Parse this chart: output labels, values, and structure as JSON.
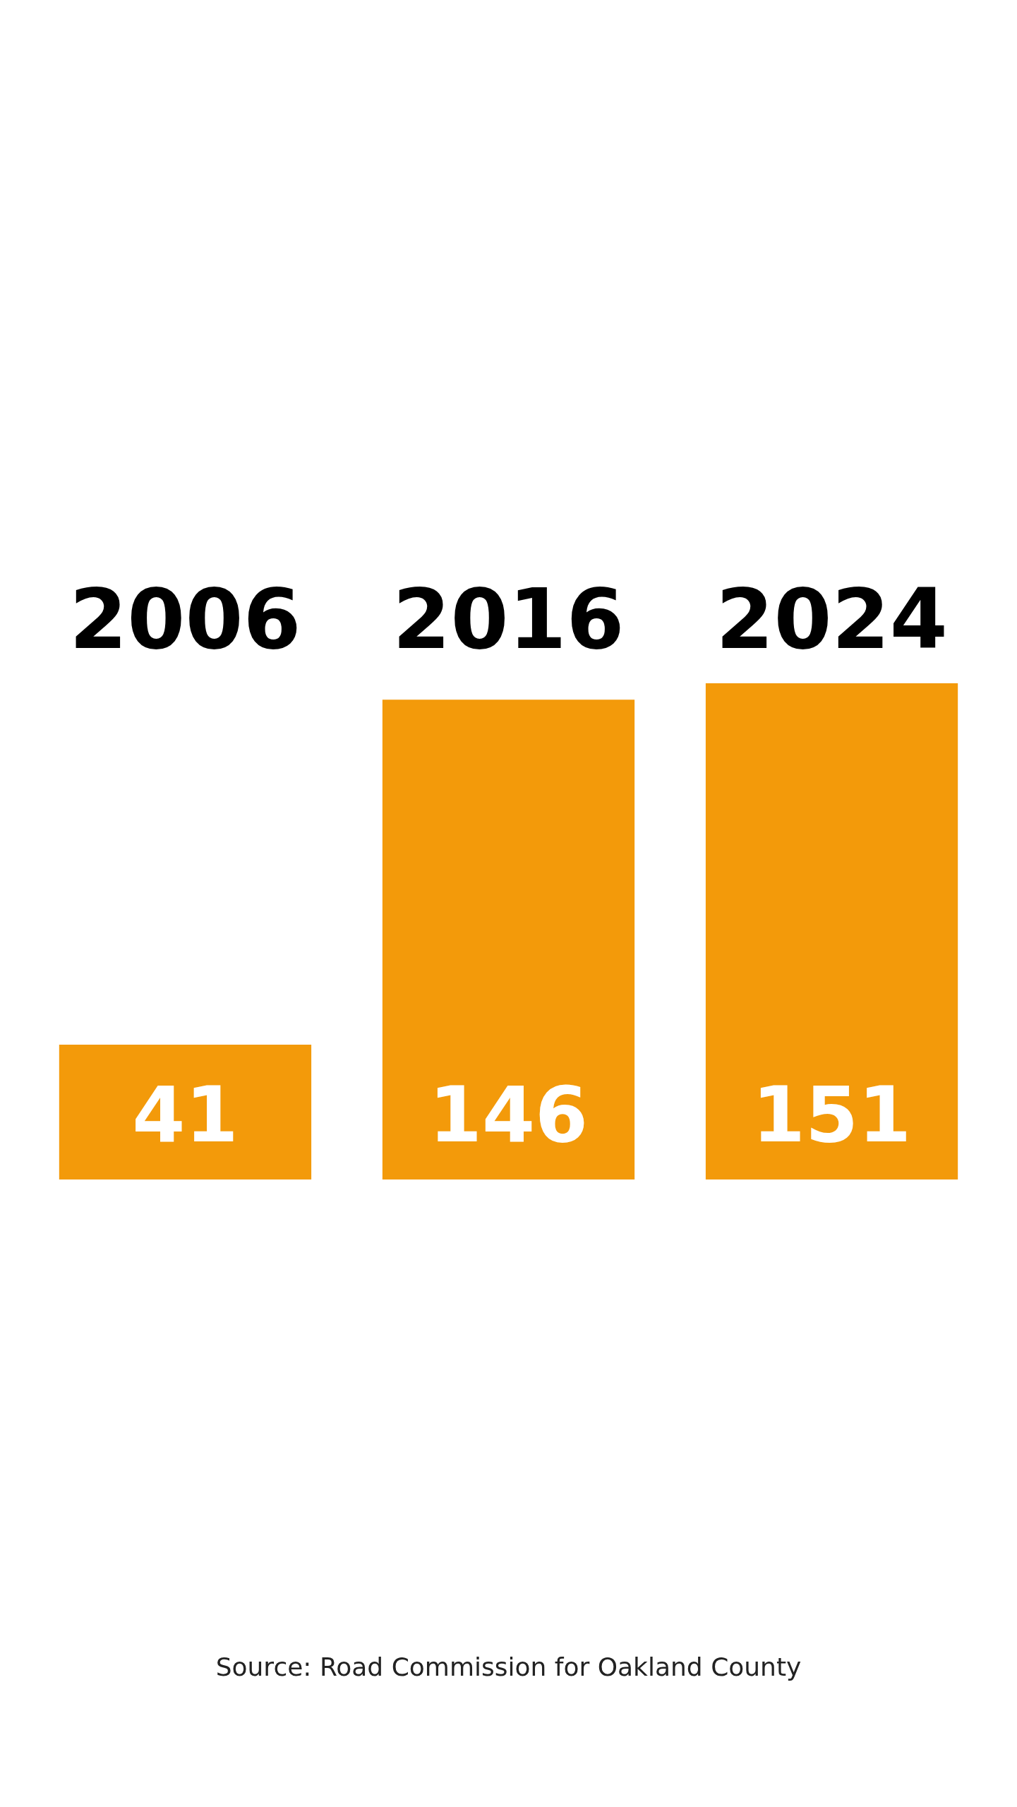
{
  "chart_data": {
    "type": "bar",
    "categories": [
      "2006",
      "2016",
      "2024"
    ],
    "values": [
      41,
      146,
      151
    ],
    "color": "#f39a0a",
    "data_labels": true,
    "annotations": [
      "Source: Road Commission for Oakland County"
    ]
  }
}
